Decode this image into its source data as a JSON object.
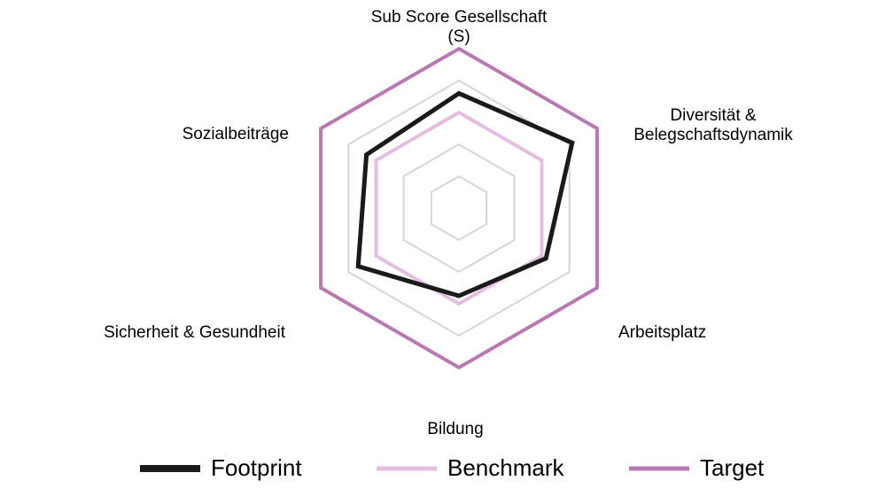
{
  "chart_data": {
    "type": "radar",
    "axes": [
      [
        "Sub Score Gesellschaft",
        "(S)"
      ],
      [
        "Diversität &",
        "Belegschaftsdynamik"
      ],
      [
        "Arbeitsplatz"
      ],
      [
        "Bildung"
      ],
      [
        "Sicherheit & Gesundheit"
      ],
      [
        "Sozialbeiträge"
      ]
    ],
    "rmax": 1,
    "grid_levels": [
      0.2,
      0.4,
      0.6,
      0.8
    ],
    "grid": true,
    "legend_position": "bottom",
    "series": [
      {
        "name": "Target",
        "color": "#bb77b4",
        "values": [
          1,
          1,
          1,
          1,
          1,
          1
        ]
      },
      {
        "name": "Benchmark",
        "color": "#e4bde0",
        "values": [
          0.6,
          0.6,
          0.6,
          0.6,
          0.6,
          0.6
        ]
      },
      {
        "name": "Footprint",
        "color": "#1a1a1a",
        "values": [
          0.72,
          0.82,
          0.63,
          0.55,
          0.73,
          0.67
        ]
      }
    ],
    "legend_order": [
      "Footprint",
      "Benchmark",
      "Target"
    ]
  }
}
